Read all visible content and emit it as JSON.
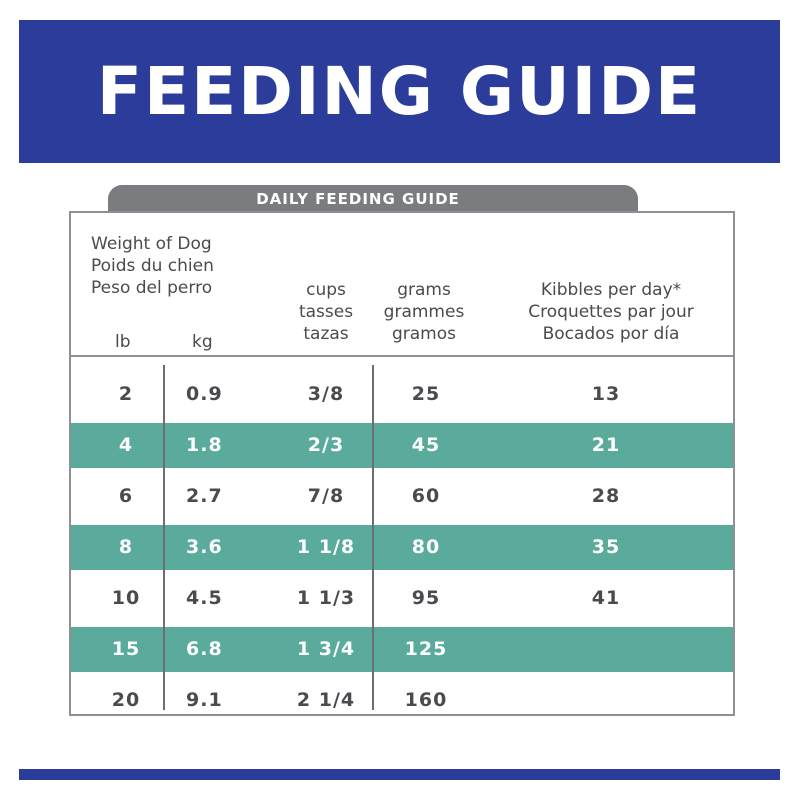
{
  "banner": {
    "title": "FEEDING GUIDE"
  },
  "tab": {
    "label": "DAILY FEEDING GUIDE"
  },
  "headers": {
    "weight": [
      "Weight of Dog",
      "Poids du chien",
      "Peso del perro"
    ],
    "lb": "lb",
    "kg": "kg",
    "cups": [
      "cups",
      "tasses",
      "tazas"
    ],
    "grams": [
      "grams",
      "grammes",
      "gramos"
    ],
    "kibbles": [
      "Kibbles per day*",
      "Croquettes par jour",
      "Bocados por día"
    ]
  },
  "rows": [
    {
      "lb": "2",
      "kg": "0.9",
      "cups": "3/8",
      "grams": "25",
      "kibbles": "13"
    },
    {
      "lb": "4",
      "kg": "1.8",
      "cups": "2/3",
      "grams": "45",
      "kibbles": "21"
    },
    {
      "lb": "6",
      "kg": "2.7",
      "cups": "7/8",
      "grams": "60",
      "kibbles": "28"
    },
    {
      "lb": "8",
      "kg": "3.6",
      "cups": "1 1/8",
      "grams": "80",
      "kibbles": "35"
    },
    {
      "lb": "10",
      "kg": "4.5",
      "cups": "1 1/3",
      "grams": "95",
      "kibbles": "41"
    },
    {
      "lb": "15",
      "kg": "6.8",
      "cups": "1 3/4",
      "grams": "125",
      "kibbles": ""
    },
    {
      "lb": "20",
      "kg": "9.1",
      "cups": "2 1/4",
      "grams": "160",
      "kibbles": ""
    }
  ],
  "colors": {
    "brand_blue": "#2b3c9b",
    "teal": "#5bab9c",
    "tab_gray": "#7a7c80"
  }
}
